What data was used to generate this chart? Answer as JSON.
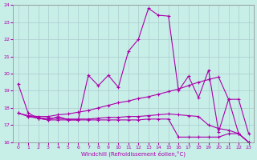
{
  "xlabel": "Windchill (Refroidissement éolien,°C)",
  "xlim": [
    0,
    23
  ],
  "ylim": [
    16,
    24
  ],
  "yticks": [
    16,
    17,
    18,
    19,
    20,
    21,
    22,
    23,
    24
  ],
  "xticks": [
    0,
    1,
    2,
    3,
    4,
    5,
    6,
    7,
    8,
    9,
    10,
    11,
    12,
    13,
    14,
    15,
    16,
    17,
    18,
    19,
    20,
    21,
    22,
    23
  ],
  "bg_color": "#c8eee8",
  "line_color": "#aa00aa",
  "grid_color": "#aacccc",
  "lines": [
    {
      "x": [
        0,
        1,
        2,
        3,
        4,
        5,
        6,
        7,
        8,
        9,
        10,
        11,
        12,
        13,
        14,
        15,
        16,
        17,
        18,
        19,
        20,
        21,
        22,
        23
      ],
      "y": [
        19.4,
        17.7,
        17.4,
        17.3,
        17.5,
        17.3,
        17.3,
        19.9,
        19.3,
        19.9,
        19.2,
        21.3,
        22.0,
        23.8,
        23.4,
        23.35,
        19.0,
        19.85,
        18.6,
        20.2,
        16.6,
        18.5,
        16.5,
        16.0
      ]
    },
    {
      "x": [
        0,
        1,
        2,
        3,
        4,
        5,
        6,
        7,
        8,
        9,
        10,
        11,
        12,
        13,
        14,
        15,
        16,
        17,
        18,
        19,
        20,
        21,
        22,
        23
      ],
      "y": [
        17.7,
        17.55,
        17.5,
        17.5,
        17.6,
        17.65,
        17.75,
        17.85,
        18.0,
        18.15,
        18.3,
        18.4,
        18.55,
        18.65,
        18.8,
        18.95,
        19.1,
        19.3,
        19.5,
        19.65,
        19.8,
        18.5,
        18.5,
        16.5
      ]
    },
    {
      "x": [
        0,
        1,
        2,
        3,
        4,
        5,
        6,
        7,
        8,
        9,
        10,
        11,
        12,
        13,
        14,
        15,
        16,
        17,
        18,
        19,
        20,
        21,
        22,
        23
      ],
      "y": [
        17.7,
        17.5,
        17.4,
        17.4,
        17.4,
        17.35,
        17.35,
        17.35,
        17.4,
        17.45,
        17.45,
        17.5,
        17.5,
        17.55,
        17.6,
        17.65,
        17.6,
        17.55,
        17.5,
        17.0,
        16.8,
        16.7,
        16.5,
        16.0
      ]
    },
    {
      "x": [
        1,
        2,
        3,
        4,
        5,
        6,
        7,
        8,
        9,
        10,
        11,
        12,
        13,
        14,
        15,
        16,
        17,
        18,
        19,
        20,
        21,
        22,
        23
      ],
      "y": [
        17.55,
        17.4,
        17.3,
        17.3,
        17.3,
        17.3,
        17.3,
        17.3,
        17.3,
        17.3,
        17.3,
        17.3,
        17.35,
        17.35,
        17.35,
        16.3,
        16.3,
        16.3,
        16.3,
        16.3,
        16.5,
        16.5,
        16.0
      ]
    }
  ]
}
